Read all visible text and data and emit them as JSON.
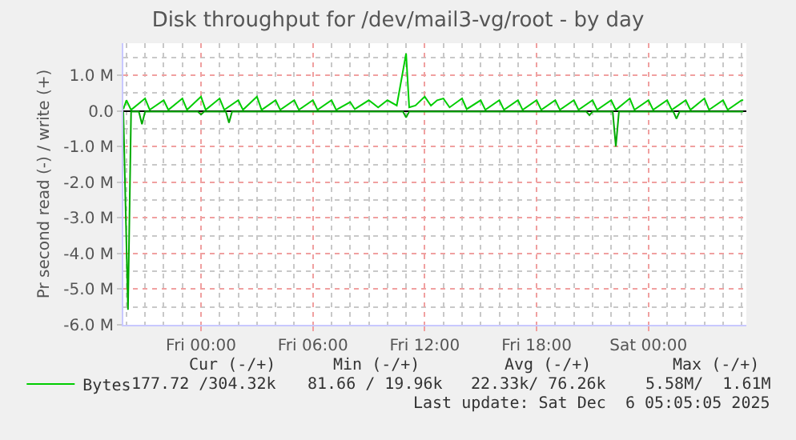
{
  "chart_data": {
    "type": "line",
    "title": "Disk throughput for /dev/mail3-vg/root - by day",
    "ylabel": "Pr second read (-) / write (+)",
    "xlim": [
      "2025-12-04T19:50",
      "2025-12-06T05:15"
    ],
    "xticks": [
      {
        "value": "2025-12-05T00:00",
        "label": "Fri 00:00"
      },
      {
        "value": "2025-12-05T06:00",
        "label": "Fri 06:00"
      },
      {
        "value": "2025-12-05T12:00",
        "label": "Fri 12:00"
      },
      {
        "value": "2025-12-05T18:00",
        "label": "Fri 18:00"
      },
      {
        "value": "2025-12-06T00:00",
        "label": "Sat 00:00"
      }
    ],
    "ylim": [
      -6,
      1.9
    ],
    "yticks": [
      {
        "value": -6,
        "label": "-6.0 M"
      },
      {
        "value": -5,
        "label": "-5.0 M"
      },
      {
        "value": -4,
        "label": "-4.0 M"
      },
      {
        "value": -3,
        "label": "-3.0 M"
      },
      {
        "value": -2,
        "label": "-2.0 M"
      },
      {
        "value": -1,
        "label": "-1.0 M"
      },
      {
        "value": 0,
        "label": "0.0"
      },
      {
        "value": 1,
        "label": "1.0 M"
      }
    ],
    "grid": true,
    "legend": "bottom left",
    "marker": "none",
    "line_style": "solid",
    "series": [
      {
        "name": "Bytes",
        "color": "#00cc00",
        "x": [
          "2025-12-04T19:50",
          "2025-12-04T20:00",
          "2025-12-04T20:15",
          "2025-12-04T21:00",
          "2025-12-04T21:15",
          "2025-12-04T22:00",
          "2025-12-04T22:15",
          "2025-12-04T23:00",
          "2025-12-04T23:15",
          "2025-12-05T00:00",
          "2025-12-05T00:15",
          "2025-12-05T01:00",
          "2025-12-05T01:15",
          "2025-12-05T02:00",
          "2025-12-05T02:15",
          "2025-12-05T03:00",
          "2025-12-05T03:15",
          "2025-12-05T04:00",
          "2025-12-05T04:15",
          "2025-12-05T05:00",
          "2025-12-05T05:15",
          "2025-12-05T06:00",
          "2025-12-05T06:15",
          "2025-12-05T07:00",
          "2025-12-05T07:15",
          "2025-12-05T08:00",
          "2025-12-05T08:15",
          "2025-12-05T09:00",
          "2025-12-05T09:30",
          "2025-12-05T10:00",
          "2025-12-05T10:30",
          "2025-12-05T11:00",
          "2025-12-05T11:10",
          "2025-12-05T11:30",
          "2025-12-05T12:00",
          "2025-12-05T12:20",
          "2025-12-05T12:40",
          "2025-12-05T13:00",
          "2025-12-05T13:20",
          "2025-12-05T14:00",
          "2025-12-05T14:15",
          "2025-12-05T15:00",
          "2025-12-05T15:15",
          "2025-12-05T16:00",
          "2025-12-05T16:15",
          "2025-12-05T17:00",
          "2025-12-05T17:15",
          "2025-12-05T18:00",
          "2025-12-05T18:15",
          "2025-12-05T19:00",
          "2025-12-05T19:15",
          "2025-12-05T20:00",
          "2025-12-05T20:15",
          "2025-12-05T21:00",
          "2025-12-05T21:15",
          "2025-12-05T22:00",
          "2025-12-05T22:15",
          "2025-12-05T23:00",
          "2025-12-05T23:15",
          "2025-12-06T00:00",
          "2025-12-06T00:15",
          "2025-12-06T01:00",
          "2025-12-06T01:15",
          "2025-12-06T02:00",
          "2025-12-06T02:15",
          "2025-12-06T03:00",
          "2025-12-06T03:15",
          "2025-12-06T04:00",
          "2025-12-06T04:15",
          "2025-12-06T05:00",
          "2025-12-06T05:05"
        ],
        "values": [
          0.05,
          0.3,
          0.03,
          0.35,
          0.03,
          0.3,
          0.03,
          0.35,
          0.03,
          0.4,
          0.03,
          0.35,
          0.03,
          0.3,
          0.03,
          0.4,
          0.03,
          0.3,
          0.03,
          0.3,
          0.03,
          0.3,
          0.03,
          0.3,
          0.03,
          0.25,
          0.05,
          0.3,
          0.1,
          0.3,
          0.15,
          1.61,
          0.1,
          0.15,
          0.4,
          0.15,
          0.3,
          0.35,
          0.1,
          0.35,
          0.05,
          0.3,
          0.03,
          0.3,
          0.03,
          0.3,
          0.03,
          0.3,
          0.03,
          0.3,
          0.03,
          0.3,
          0.03,
          0.3,
          0.03,
          0.3,
          0.03,
          0.35,
          0.03,
          0.3,
          0.03,
          0.3,
          0.03,
          0.3,
          0.03,
          0.35,
          0.03,
          0.3,
          0.03,
          0.3,
          0.3
        ]
      },
      {
        "color": "#00aa00",
        "x": [
          "2025-12-04T19:50",
          "2025-12-04T20:05",
          "2025-12-04T20:15",
          "2025-12-04T20:40",
          "2025-12-04T20:50",
          "2025-12-04T21:00",
          "2025-12-04T23:50",
          "2025-12-05T00:00",
          "2025-12-05T00:10",
          "2025-12-05T01:20",
          "2025-12-05T01:30",
          "2025-12-05T01:40",
          "2025-12-05T10:50",
          "2025-12-05T11:00",
          "2025-12-05T11:10",
          "2025-12-05T20:40",
          "2025-12-05T20:50",
          "2025-12-05T21:00",
          "2025-12-05T22:05",
          "2025-12-05T22:15",
          "2025-12-05T22:25",
          "2025-12-06T01:20",
          "2025-12-06T01:30",
          "2025-12-06T01:40",
          "2025-12-06T05:05"
        ],
        "values": [
          -0.02,
          -5.58,
          -0.02,
          -0.02,
          -0.37,
          -0.02,
          -0.02,
          -0.1,
          -0.02,
          -0.02,
          -0.33,
          -0.02,
          -0.02,
          -0.18,
          -0.02,
          -0.02,
          -0.12,
          -0.02,
          -0.02,
          -1.0,
          -0.02,
          -0.02,
          -0.22,
          -0.02,
          -0.02
        ]
      }
    ],
    "annotations": [
      "Cur (-/+)",
      "Min (-/+)",
      "Avg (-/+)",
      "Max (-/+)",
      "177.72 /304.32k",
      "81.66 / 19.96k",
      "22.33k/ 76.26k",
      "5.58M/  1.61M",
      "Last update: Sat Dec  6 05:05:05 2025"
    ]
  }
}
